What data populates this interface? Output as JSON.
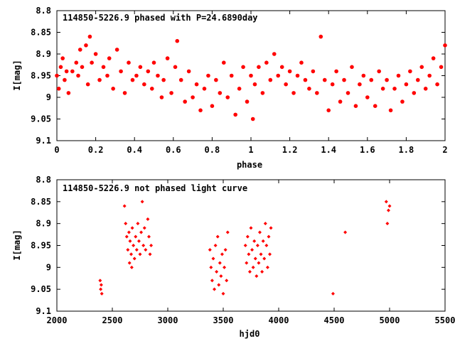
{
  "colors": {
    "points": "#ff0000",
    "axes": "#000000",
    "background": "#ffffff"
  },
  "chart_data": [
    {
      "type": "scatter",
      "title": "114850-5226.9 phased with P=24.6890day",
      "xlabel": "phase",
      "ylabel": "I[mag]",
      "xlim": [
        0,
        2
      ],
      "ylim": [
        8.8,
        9.1
      ],
      "y_inverted": true,
      "grid": false,
      "marker": "filled circle",
      "xticks": [
        "0",
        "0.2",
        "0.4",
        "0.6",
        "0.8",
        "1",
        "1.2",
        "1.4",
        "1.6",
        "1.8",
        "2"
      ],
      "yticks": [
        "8.8",
        "8.85",
        "8.9",
        "8.95",
        "9",
        "9.05",
        "9.1"
      ],
      "points": [
        [
          0.0,
          8.95
        ],
        [
          0.01,
          8.98
        ],
        [
          0.02,
          8.93
        ],
        [
          0.03,
          8.91
        ],
        [
          0.04,
          8.96
        ],
        [
          0.05,
          8.94
        ],
        [
          0.06,
          8.99
        ],
        [
          0.08,
          8.94
        ],
        [
          0.1,
          8.92
        ],
        [
          0.11,
          8.95
        ],
        [
          0.12,
          8.89
        ],
        [
          0.13,
          8.93
        ],
        [
          0.15,
          8.88
        ],
        [
          0.16,
          8.97
        ],
        [
          0.17,
          8.86
        ],
        [
          0.18,
          8.92
        ],
        [
          0.2,
          8.9
        ],
        [
          0.22,
          8.96
        ],
        [
          0.24,
          8.93
        ],
        [
          0.26,
          8.95
        ],
        [
          0.27,
          8.91
        ],
        [
          0.29,
          8.98
        ],
        [
          0.31,
          8.89
        ],
        [
          0.33,
          8.94
        ],
        [
          0.35,
          8.99
        ],
        [
          0.37,
          8.92
        ],
        [
          0.39,
          8.96
        ],
        [
          0.41,
          8.95
        ],
        [
          0.43,
          8.93
        ],
        [
          0.45,
          8.97
        ],
        [
          0.47,
          8.94
        ],
        [
          0.49,
          8.98
        ],
        [
          0.5,
          8.92
        ],
        [
          0.52,
          8.95
        ],
        [
          0.54,
          9.0
        ],
        [
          0.55,
          8.96
        ],
        [
          0.57,
          8.91
        ],
        [
          0.59,
          8.99
        ],
        [
          0.61,
          8.93
        ],
        [
          0.62,
          8.87
        ],
        [
          0.64,
          8.96
        ],
        [
          0.66,
          9.01
        ],
        [
          0.68,
          8.94
        ],
        [
          0.7,
          9.0
        ],
        [
          0.72,
          8.97
        ],
        [
          0.74,
          9.03
        ],
        [
          0.76,
          8.98
        ],
        [
          0.78,
          8.95
        ],
        [
          0.8,
          9.02
        ],
        [
          0.82,
          8.96
        ],
        [
          0.84,
          8.99
        ],
        [
          0.86,
          8.92
        ],
        [
          0.88,
          9.0
        ],
        [
          0.9,
          8.95
        ],
        [
          0.92,
          9.04
        ],
        [
          0.94,
          8.98
        ],
        [
          0.96,
          8.93
        ],
        [
          0.98,
          9.01
        ],
        [
          1.0,
          8.95
        ],
        [
          1.01,
          9.05
        ],
        [
          1.02,
          8.97
        ],
        [
          1.04,
          8.93
        ],
        [
          1.06,
          8.99
        ],
        [
          1.08,
          8.92
        ],
        [
          1.1,
          8.96
        ],
        [
          1.12,
          8.9
        ],
        [
          1.14,
          8.95
        ],
        [
          1.16,
          8.93
        ],
        [
          1.18,
          8.97
        ],
        [
          1.2,
          8.94
        ],
        [
          1.22,
          8.99
        ],
        [
          1.24,
          8.95
        ],
        [
          1.26,
          8.92
        ],
        [
          1.28,
          8.96
        ],
        [
          1.3,
          8.98
        ],
        [
          1.32,
          8.94
        ],
        [
          1.34,
          8.99
        ],
        [
          1.36,
          8.86
        ],
        [
          1.38,
          8.96
        ],
        [
          1.4,
          9.03
        ],
        [
          1.42,
          8.97
        ],
        [
          1.44,
          8.94
        ],
        [
          1.46,
          9.01
        ],
        [
          1.48,
          8.96
        ],
        [
          1.5,
          8.99
        ],
        [
          1.52,
          8.93
        ],
        [
          1.54,
          9.02
        ],
        [
          1.56,
          8.97
        ],
        [
          1.58,
          8.95
        ],
        [
          1.6,
          9.0
        ],
        [
          1.62,
          8.96
        ],
        [
          1.64,
          9.02
        ],
        [
          1.66,
          8.94
        ],
        [
          1.68,
          8.98
        ],
        [
          1.7,
          8.96
        ],
        [
          1.72,
          9.03
        ],
        [
          1.74,
          8.98
        ],
        [
          1.76,
          8.95
        ],
        [
          1.78,
          9.01
        ],
        [
          1.8,
          8.97
        ],
        [
          1.82,
          8.94
        ],
        [
          1.84,
          8.99
        ],
        [
          1.86,
          8.96
        ],
        [
          1.88,
          8.93
        ],
        [
          1.9,
          8.98
        ],
        [
          1.92,
          8.95
        ],
        [
          1.94,
          8.91
        ],
        [
          1.96,
          8.97
        ],
        [
          1.98,
          8.93
        ],
        [
          2.0,
          8.88
        ]
      ]
    },
    {
      "type": "scatter",
      "title": "114850-5226.9 not phased light curve",
      "xlabel": "hjd0",
      "ylabel": "I[mag]",
      "xlim": [
        2000,
        5500
      ],
      "ylim": [
        8.8,
        9.1
      ],
      "y_inverted": true,
      "grid": false,
      "marker": "small diamond",
      "xticks": [
        "2000",
        "2500",
        "3000",
        "3500",
        "4000",
        "4500",
        "5000",
        "5500"
      ],
      "yticks": [
        "8.8",
        "8.85",
        "8.9",
        "8.95",
        "9",
        "9.05",
        "9.1"
      ],
      "points": [
        [
          2390,
          9.03
        ],
        [
          2395,
          9.05
        ],
        [
          2400,
          9.04
        ],
        [
          2405,
          9.06
        ],
        [
          2610,
          8.86
        ],
        [
          2620,
          8.9
        ],
        [
          2630,
          8.93
        ],
        [
          2640,
          8.96
        ],
        [
          2650,
          8.92
        ],
        [
          2655,
          8.99
        ],
        [
          2660,
          8.94
        ],
        [
          2670,
          8.97
        ],
        [
          2675,
          9.0
        ],
        [
          2680,
          8.91
        ],
        [
          2690,
          8.95
        ],
        [
          2700,
          8.98
        ],
        [
          2710,
          8.93
        ],
        [
          2720,
          8.96
        ],
        [
          2730,
          8.9
        ],
        [
          2740,
          8.94
        ],
        [
          2750,
          8.97
        ],
        [
          2760,
          8.92
        ],
        [
          2770,
          8.85
        ],
        [
          2780,
          8.95
        ],
        [
          2790,
          8.91
        ],
        [
          2800,
          8.96
        ],
        [
          2820,
          8.89
        ],
        [
          2830,
          8.93
        ],
        [
          2840,
          8.97
        ],
        [
          2850,
          8.95
        ],
        [
          3380,
          8.96
        ],
        [
          3390,
          9.0
        ],
        [
          3400,
          9.03
        ],
        [
          3410,
          8.98
        ],
        [
          3420,
          9.05
        ],
        [
          3430,
          8.95
        ],
        [
          3440,
          9.01
        ],
        [
          3450,
          8.93
        ],
        [
          3460,
          9.04
        ],
        [
          3470,
          8.99
        ],
        [
          3480,
          9.02
        ],
        [
          3490,
          8.97
        ],
        [
          3500,
          9.06
        ],
        [
          3510,
          9.0
        ],
        [
          3520,
          8.96
        ],
        [
          3530,
          9.03
        ],
        [
          3540,
          8.92
        ],
        [
          3700,
          8.95
        ],
        [
          3710,
          8.99
        ],
        [
          3720,
          8.93
        ],
        [
          3730,
          8.97
        ],
        [
          3740,
          9.01
        ],
        [
          3750,
          8.91
        ],
        [
          3760,
          8.96
        ],
        [
          3770,
          9.0
        ],
        [
          3780,
          8.94
        ],
        [
          3790,
          8.98
        ],
        [
          3800,
          9.02
        ],
        [
          3810,
          8.95
        ],
        [
          3820,
          8.99
        ],
        [
          3830,
          8.92
        ],
        [
          3840,
          8.97
        ],
        [
          3850,
          9.01
        ],
        [
          3860,
          8.94
        ],
        [
          3870,
          8.98
        ],
        [
          3880,
          8.9
        ],
        [
          3890,
          8.95
        ],
        [
          3900,
          9.0
        ],
        [
          3910,
          8.93
        ],
        [
          3920,
          8.97
        ],
        [
          3930,
          8.91
        ],
        [
          4490,
          9.06
        ],
        [
          4600,
          8.92
        ],
        [
          4970,
          8.85
        ],
        [
          4980,
          8.9
        ],
        [
          4990,
          8.87
        ],
        [
          5000,
          8.86
        ]
      ]
    }
  ]
}
